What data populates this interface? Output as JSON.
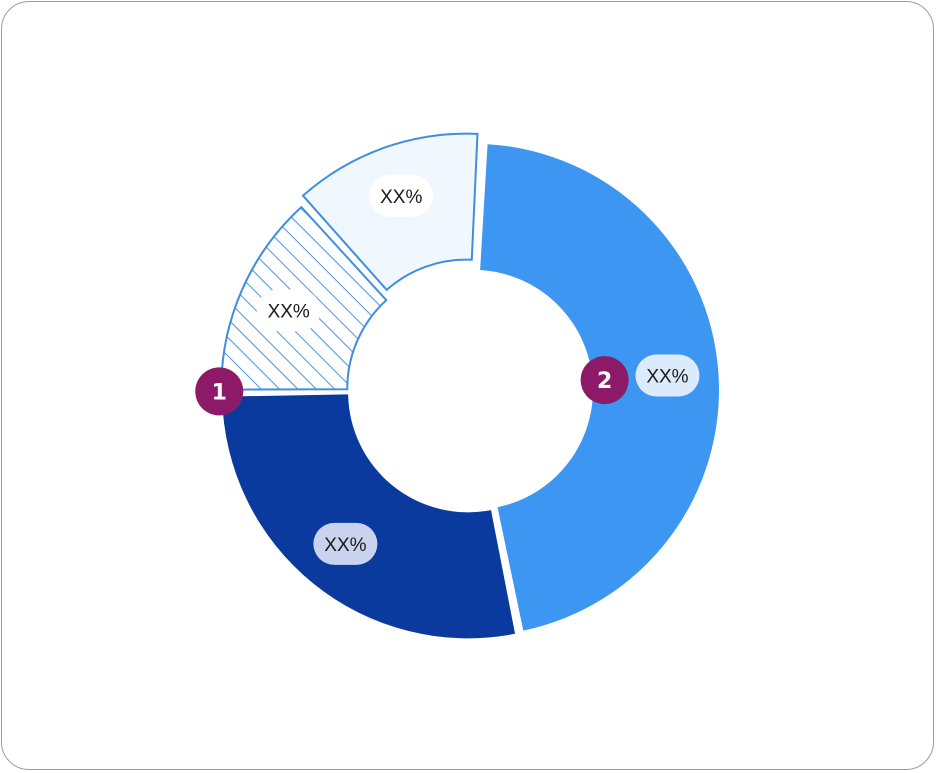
{
  "colors": {
    "dark_blue": "#0a3a9e",
    "bright_blue": "#3c96f2",
    "outline_blue": "#3f8ee0",
    "pale_blue": "#f1f7fe",
    "marker": "#8c1a68"
  },
  "chart_data": {
    "type": "pie",
    "variant": "donut",
    "start_angle_deg": 3,
    "direction": "clockwise",
    "slices": [
      {
        "label": "XX%",
        "value": 46,
        "fill": "solid-bright-blue",
        "annotation": "2"
      },
      {
        "label": "XX%",
        "value": 28,
        "fill": "solid-dark-blue"
      },
      {
        "label": "XX%",
        "value": 13.5,
        "fill": "hatched-light-blue",
        "annotation": "1"
      },
      {
        "label": "XX%",
        "value": 12.5,
        "fill": "outlined-pale-blue"
      }
    ]
  },
  "annotations": [
    {
      "label": "1"
    },
    {
      "label": "2"
    }
  ]
}
